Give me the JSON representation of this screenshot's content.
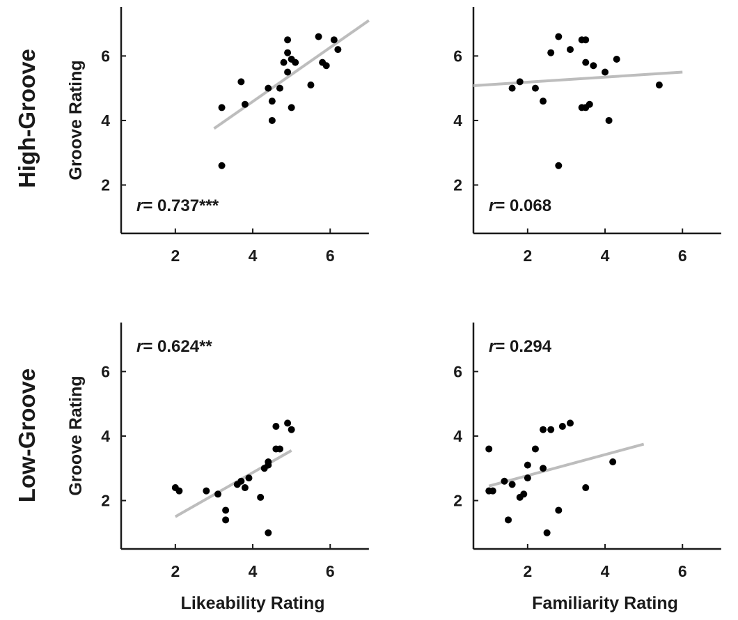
{
  "row_labels": [
    "High-Groove",
    "Low-Groove"
  ],
  "chart_data": [
    {
      "type": "scatter",
      "row": "High-Groove",
      "xlabel": "",
      "ylabel": "Groove Rating",
      "xlim": [
        0.6,
        7
      ],
      "ylim": [
        0.5,
        7.5
      ],
      "xticks": [
        2,
        4,
        6
      ],
      "yticks": [
        2,
        4,
        6
      ],
      "annotation": {
        "r_symbol": "r",
        "text": "= 0.737***"
      },
      "fit_line": {
        "x": [
          3.0,
          7.0
        ],
        "y": [
          3.75,
          7.1
        ]
      },
      "points": {
        "x": [
          3.2,
          3.2,
          3.7,
          3.8,
          4.4,
          4.5,
          4.5,
          4.7,
          4.8,
          4.9,
          4.9,
          4.9,
          5.0,
          5.0,
          5.1,
          5.5,
          5.7,
          5.8,
          5.9,
          6.1,
          6.2
        ],
        "y": [
          4.4,
          2.6,
          5.2,
          4.5,
          5.0,
          4.6,
          4.0,
          5.0,
          5.8,
          6.5,
          6.1,
          5.5,
          5.9,
          4.4,
          5.8,
          5.1,
          6.6,
          5.8,
          5.7,
          6.5,
          6.2
        ]
      }
    },
    {
      "type": "scatter",
      "row": "High-Groove",
      "xlabel": "",
      "ylabel": "",
      "xlim": [
        0.6,
        7
      ],
      "ylim": [
        0.5,
        7.5
      ],
      "xticks": [
        2,
        4,
        6
      ],
      "yticks": [
        2,
        4,
        6
      ],
      "annotation": {
        "r_symbol": "r",
        "text": "= 0.068"
      },
      "fit_line": {
        "x": [
          0.6,
          6.0
        ],
        "y": [
          5.08,
          5.5
        ]
      },
      "points": {
        "x": [
          1.6,
          1.8,
          2.2,
          2.4,
          2.6,
          2.8,
          2.8,
          3.1,
          3.4,
          3.4,
          3.5,
          3.5,
          3.5,
          3.6,
          3.7,
          4.0,
          4.1,
          4.3,
          5.4
        ],
        "y": [
          5.0,
          5.2,
          5.0,
          4.6,
          6.1,
          6.6,
          2.6,
          6.2,
          6.5,
          4.4,
          6.5,
          5.8,
          4.4,
          4.5,
          5.7,
          5.5,
          4.0,
          5.9,
          5.1
        ]
      }
    },
    {
      "type": "scatter",
      "row": "Low-Groove",
      "xlabel": "Likeability Rating",
      "ylabel": "Groove Rating",
      "xlim": [
        0.6,
        7
      ],
      "ylim": [
        0.5,
        7.5
      ],
      "xticks": [
        2,
        4,
        6
      ],
      "yticks": [
        2,
        4,
        6
      ],
      "annotation": {
        "r_symbol": "r",
        "text": "= 0.624**"
      },
      "fit_line": {
        "x": [
          2.0,
          5.0
        ],
        "y": [
          1.5,
          3.55
        ]
      },
      "points": {
        "x": [
          2.0,
          2.1,
          2.8,
          3.1,
          3.3,
          3.3,
          3.6,
          3.7,
          3.8,
          3.9,
          4.2,
          4.3,
          4.4,
          4.4,
          4.4,
          4.6,
          4.6,
          4.7,
          4.9,
          5.0
        ],
        "y": [
          2.4,
          2.3,
          2.3,
          2.2,
          1.7,
          1.4,
          2.5,
          2.6,
          2.4,
          2.7,
          2.1,
          3.0,
          3.2,
          3.1,
          1.0,
          4.3,
          3.6,
          3.6,
          4.4,
          4.2
        ]
      }
    },
    {
      "type": "scatter",
      "row": "Low-Groove",
      "xlabel": "Familiarity Rating",
      "ylabel": "",
      "xlim": [
        0.6,
        7
      ],
      "ylim": [
        0.5,
        7.5
      ],
      "xticks": [
        2,
        4,
        6
      ],
      "yticks": [
        2,
        4,
        6
      ],
      "annotation": {
        "r_symbol": "r",
        "text": "= 0.294"
      },
      "fit_line": {
        "x": [
          1.0,
          5.0
        ],
        "y": [
          2.45,
          3.75
        ]
      },
      "points": {
        "x": [
          1.0,
          1.0,
          1.1,
          1.4,
          1.5,
          1.6,
          1.8,
          1.9,
          2.0,
          2.0,
          2.2,
          2.4,
          2.4,
          2.5,
          2.6,
          2.8,
          2.9,
          3.1,
          3.5,
          4.2
        ],
        "y": [
          3.6,
          2.3,
          2.3,
          2.6,
          1.4,
          2.5,
          2.1,
          2.2,
          3.1,
          2.7,
          3.6,
          4.2,
          3.0,
          1.0,
          4.2,
          1.7,
          4.3,
          4.4,
          2.4,
          3.2
        ]
      }
    }
  ]
}
